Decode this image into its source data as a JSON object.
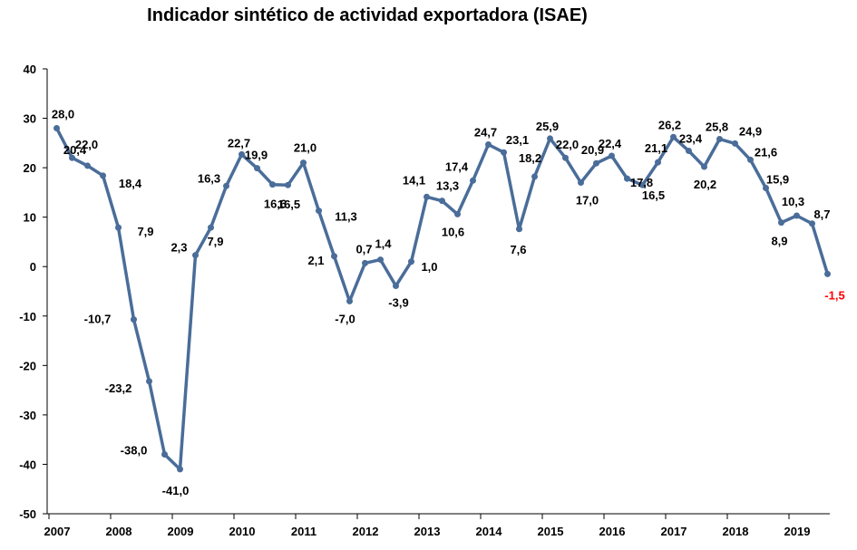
{
  "chart_data": {
    "type": "line",
    "title": "Indicador sintético de actividad exportadora (ISAE)",
    "ylim": [
      -50,
      40
    ],
    "yticks": [
      40,
      30,
      20,
      10,
      0,
      -10,
      -20,
      -30,
      -40,
      -50
    ],
    "x_tick_labels": [
      "2007",
      "2008",
      "2009",
      "2010",
      "2011",
      "2012",
      "2013",
      "2014",
      "2015",
      "2016",
      "2017",
      "2018",
      "2019"
    ],
    "grid": false,
    "legend": "none",
    "line_color": "#4a6d99",
    "negative_last_label_color": "#ff0000",
    "series": [
      {
        "values": [
          28.0,
          22.0,
          20.4,
          18.4,
          7.9,
          -10.7,
          -23.2,
          -38.0,
          -41.0,
          2.3,
          7.9,
          16.3,
          22.7,
          19.9,
          16.6,
          16.5,
          21.0,
          11.3,
          2.1,
          -7.0,
          0.7,
          1.4,
          -3.9,
          1.0,
          14.1,
          13.3,
          10.6,
          17.4,
          24.7,
          23.1,
          7.6,
          18.2,
          25.9,
          22.0,
          17.0,
          20.9,
          22.4,
          17.8,
          16.5,
          21.1,
          26.2,
          23.4,
          20.2,
          25.8,
          24.9,
          21.6,
          15.9,
          8.9,
          10.3,
          8.7,
          -1.5
        ],
        "labels": [
          "28,0",
          "22,0",
          "20,4",
          "18,4",
          "7,9",
          "-10,7",
          "-23,2",
          "-38,0",
          "-41,0",
          "2,3",
          "7,9",
          "16,3",
          "22,7",
          "19,9",
          "16,6",
          "16,5",
          "21,0",
          "11,3",
          "2,1",
          "-7,0",
          "0,7",
          "1,4",
          "-3,9",
          "1,0",
          "14,1",
          "13,3",
          "10,6",
          "17,4",
          "24,7",
          "23,1",
          "7,6",
          "18,2",
          "25,9",
          "22,0",
          "17,0",
          "20,9",
          "22,4",
          "17,8",
          "16,5",
          "21,1",
          "26,2",
          "23,4",
          "20,2",
          "25,8",
          "24,9",
          "21,6",
          "15,9",
          "8,9",
          "10,3",
          "8,7",
          "-1,5"
        ]
      }
    ]
  }
}
